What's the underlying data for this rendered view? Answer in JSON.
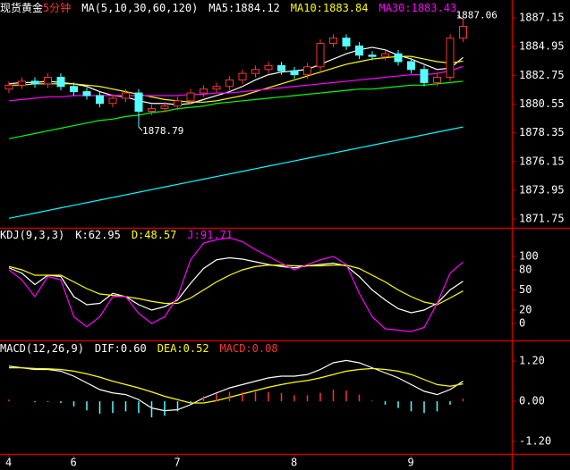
{
  "chart_data": [
    {
      "type": "candlestick",
      "title": "现货黄金",
      "subtitle": "5分钟",
      "indicator": "MA(5,10,30,60,120)",
      "categories": [
        "4",
        null,
        null,
        null,
        null,
        "6",
        null,
        null,
        null,
        null,
        null,
        null,
        null,
        "7",
        null,
        null,
        null,
        null,
        null,
        null,
        null,
        null,
        "8",
        null,
        null,
        null,
        null,
        null,
        null,
        null,
        null,
        "9",
        null,
        null,
        null,
        null
      ],
      "open": [
        1881.7,
        1882.0,
        1882.3,
        1882.1,
        1882.6,
        1881.9,
        1881.5,
        1881.2,
        1880.6,
        1881.0,
        1881.4,
        1880.0,
        1880.2,
        1880.4,
        1880.8,
        1881.4,
        1881.7,
        1881.9,
        1882.4,
        1882.9,
        1883.2,
        1883.5,
        1883.1,
        1882.8,
        1883.4,
        1885.2,
        1885.6,
        1885.0,
        1884.3,
        1884.2,
        1884.4,
        1883.8,
        1883.2,
        1882.2,
        1882.6,
        1885.6
      ],
      "high": [
        1882.3,
        1882.6,
        1882.6,
        1882.9,
        1882.9,
        1882.2,
        1881.8,
        1881.5,
        1881.3,
        1881.7,
        1881.7,
        1880.5,
        1880.7,
        1881.1,
        1881.7,
        1882.0,
        1882.2,
        1882.7,
        1883.2,
        1883.5,
        1883.8,
        1883.8,
        1883.4,
        1883.7,
        1885.5,
        1885.9,
        1885.9,
        1885.3,
        1884.6,
        1884.7,
        1884.7,
        1884.1,
        1883.5,
        1882.9,
        1885.9,
        1887.06
      ],
      "low": [
        1881.4,
        1881.7,
        1881.8,
        1881.8,
        1881.6,
        1881.2,
        1880.9,
        1880.3,
        1880.3,
        1880.7,
        1878.79,
        1879.7,
        1879.9,
        1880.1,
        1880.5,
        1881.1,
        1881.4,
        1881.6,
        1882.1,
        1882.6,
        1882.9,
        1882.8,
        1882.5,
        1882.5,
        1883.1,
        1884.9,
        1884.7,
        1884.0,
        1883.9,
        1883.9,
        1883.5,
        1882.9,
        1881.9,
        1881.9,
        1882.3,
        1885.3
      ],
      "close": [
        1882.0,
        1882.3,
        1882.1,
        1882.6,
        1881.9,
        1881.5,
        1881.2,
        1880.6,
        1881.0,
        1881.4,
        1880.0,
        1880.2,
        1880.4,
        1880.8,
        1881.4,
        1881.7,
        1881.9,
        1882.4,
        1882.9,
        1883.2,
        1883.5,
        1883.1,
        1882.8,
        1883.4,
        1885.2,
        1885.6,
        1885.0,
        1884.3,
        1884.2,
        1884.4,
        1883.8,
        1883.2,
        1882.2,
        1882.6,
        1885.6,
        1886.5
      ],
      "up_color": "#ff3232",
      "down_color": "#54ffff",
      "series": [
        {
          "name": "MA5:",
          "color": "#ffffff",
          "values": [
            1882.1,
            1882.2,
            1882.2,
            1882.3,
            1882.2,
            1882.1,
            1881.9,
            1881.5,
            1881.2,
            1881.1,
            1880.8,
            1880.6,
            1880.6,
            1880.5,
            1880.6,
            1880.9,
            1881.2,
            1881.5,
            1881.9,
            1882.4,
            1882.8,
            1883.0,
            1883.1,
            1883.2,
            1883.6,
            1884.0,
            1884.4,
            1884.7,
            1884.9,
            1884.7,
            1884.3,
            1884.0,
            1883.6,
            1883.2,
            1883.3,
            1884.12
          ]
        },
        {
          "name": "MA10:",
          "color": "#ffff00",
          "values": [
            1882.0,
            1882.0,
            1882.1,
            1882.1,
            1882.1,
            1882.1,
            1882.0,
            1881.9,
            1881.7,
            1881.5,
            1881.3,
            1881.1,
            1880.9,
            1880.8,
            1880.7,
            1880.7,
            1880.8,
            1881.0,
            1881.2,
            1881.5,
            1881.8,
            1882.1,
            1882.4,
            1882.7,
            1883.0,
            1883.3,
            1883.6,
            1883.8,
            1884.0,
            1884.1,
            1884.2,
            1884.2,
            1884.0,
            1883.8,
            1883.7,
            1883.84
          ]
        },
        {
          "name": "MA30:",
          "color": "#ff00ff",
          "values": [
            1880.8,
            1880.9,
            1881.0,
            1881.1,
            1881.1,
            1881.2,
            1881.2,
            1881.2,
            1881.2,
            1881.2,
            1881.2,
            1881.2,
            1881.2,
            1881.2,
            1881.3,
            1881.3,
            1881.4,
            1881.4,
            1881.5,
            1881.6,
            1881.7,
            1881.8,
            1881.9,
            1882.0,
            1882.1,
            1882.2,
            1882.3,
            1882.4,
            1882.5,
            1882.6,
            1882.7,
            1882.8,
            1882.8,
            1882.9,
            1883.1,
            1883.43
          ]
        },
        {
          "color": "#00ff00",
          "values": [
            1877.9,
            1878.1,
            1878.3,
            1878.5,
            1878.7,
            1878.9,
            1879.1,
            1879.3,
            1879.4,
            1879.6,
            1879.7,
            1879.9,
            1880.0,
            1880.2,
            1880.3,
            1880.4,
            1880.6,
            1880.7,
            1880.8,
            1880.9,
            1881.0,
            1881.1,
            1881.2,
            1881.3,
            1881.4,
            1881.5,
            1881.6,
            1881.7,
            1881.7,
            1881.8,
            1881.9,
            1882.0,
            1882.0,
            1882.1,
            1882.2,
            1882.3
          ]
        },
        {
          "color": "#00ffff",
          "values": [
            1871.8,
            1872.0,
            1872.2,
            1872.4,
            1872.6,
            1872.8,
            1873.0,
            1873.2,
            1873.4,
            1873.6,
            1873.8,
            1874.0,
            1874.2,
            1874.4,
            1874.6,
            1874.8,
            1875.0,
            1875.2,
            1875.4,
            1875.6,
            1875.8,
            1876.0,
            1876.2,
            1876.4,
            1876.6,
            1876.8,
            1877.0,
            1877.2,
            1877.4,
            1877.6,
            1877.8,
            1878.0,
            1878.2,
            1878.4,
            1878.6,
            1878.8
          ]
        }
      ],
      "ylim": [
        1871.07,
        1888.18
      ],
      "yticks": [
        1887.15,
        1884.95,
        1882.75,
        1880.55,
        1878.35,
        1876.15,
        1873.95,
        1871.75
      ]
    },
    {
      "type": "line",
      "title": "KDJ(9,3,3)",
      "series": [
        {
          "name": "K:",
          "color": "#ffffff",
          "values": [
            83,
            75,
            58,
            72,
            70,
            40,
            28,
            30,
            45,
            40,
            28,
            20,
            25,
            35,
            60,
            82,
            95,
            98,
            96,
            92,
            88,
            85,
            83,
            86,
            88,
            90,
            86,
            70,
            50,
            35,
            22,
            16,
            20,
            30,
            50,
            62.95
          ]
        },
        {
          "name": "D:",
          "color": "#ffff00",
          "values": [
            85,
            80,
            72,
            72,
            72,
            62,
            52,
            44,
            42,
            40,
            37,
            33,
            30,
            30,
            38,
            50,
            62,
            72,
            80,
            85,
            87,
            87,
            86,
            86,
            86,
            87,
            87,
            82,
            72,
            62,
            50,
            40,
            32,
            28,
            38,
            48.57
          ]
        },
        {
          "name": "J:",
          "color": "#ff00ff",
          "values": [
            80,
            65,
            40,
            70,
            65,
            10,
            -5,
            10,
            40,
            40,
            15,
            0,
            10,
            40,
            95,
            120,
            125,
            128,
            122,
            110,
            100,
            90,
            80,
            88,
            95,
            100,
            88,
            45,
            10,
            -8,
            -10,
            -12,
            -6,
            30,
            75,
            91.71
          ]
        }
      ],
      "ylim": [
        -24,
        140
      ],
      "yticks": [
        100,
        80,
        50,
        20,
        0
      ]
    },
    {
      "type": "line",
      "title": "MACD(12,26,9)",
      "series": [
        {
          "name": "DIF:",
          "color": "#ffffff",
          "readout": "0.60",
          "values": [
            1.05,
            1.0,
            0.95,
            0.95,
            0.9,
            0.75,
            0.55,
            0.35,
            0.25,
            0.2,
            0.05,
            -0.2,
            -0.28,
            -0.25,
            -0.1,
            0.1,
            0.25,
            0.4,
            0.5,
            0.6,
            0.7,
            0.75,
            0.75,
            0.8,
            0.95,
            1.15,
            1.22,
            1.15,
            1.0,
            0.85,
            0.7,
            0.5,
            0.3,
            0.2,
            0.35,
            0.6
          ]
        },
        {
          "name": "DEA:",
          "color": "#ffff00",
          "readout": "0.52",
          "values": [
            1.0,
            1.0,
            0.98,
            0.97,
            0.95,
            0.9,
            0.82,
            0.72,
            0.6,
            0.5,
            0.4,
            0.28,
            0.15,
            0.05,
            -0.05,
            -0.05,
            0.02,
            0.12,
            0.22,
            0.32,
            0.42,
            0.5,
            0.57,
            0.62,
            0.7,
            0.8,
            0.9,
            0.95,
            0.98,
            0.95,
            0.9,
            0.8,
            0.65,
            0.5,
            0.45,
            0.52
          ]
        },
        {
          "name": "MACD:",
          "type": "bar",
          "color": "#ff3232",
          "negative_color": "#54ffff",
          "readout": "0.08",
          "values": [
            0.05,
            0.0,
            -0.03,
            -0.02,
            -0.05,
            -0.15,
            -0.27,
            -0.37,
            -0.35,
            -0.3,
            -0.35,
            -0.48,
            -0.43,
            -0.3,
            -0.05,
            0.15,
            0.23,
            0.28,
            0.28,
            0.28,
            0.28,
            0.25,
            0.18,
            0.18,
            0.25,
            0.35,
            0.32,
            0.2,
            0.02,
            -0.1,
            -0.2,
            -0.3,
            -0.35,
            -0.3,
            -0.1,
            0.08
          ]
        }
      ],
      "ylim": [
        -1.57,
        1.79
      ],
      "yticks": [
        {
          "value": 1.2,
          "label": "1.20"
        },
        {
          "value": 0,
          "label": "0.00"
        },
        {
          "value": -1.2,
          "label": "-1.20"
        }
      ]
    }
  ]
}
